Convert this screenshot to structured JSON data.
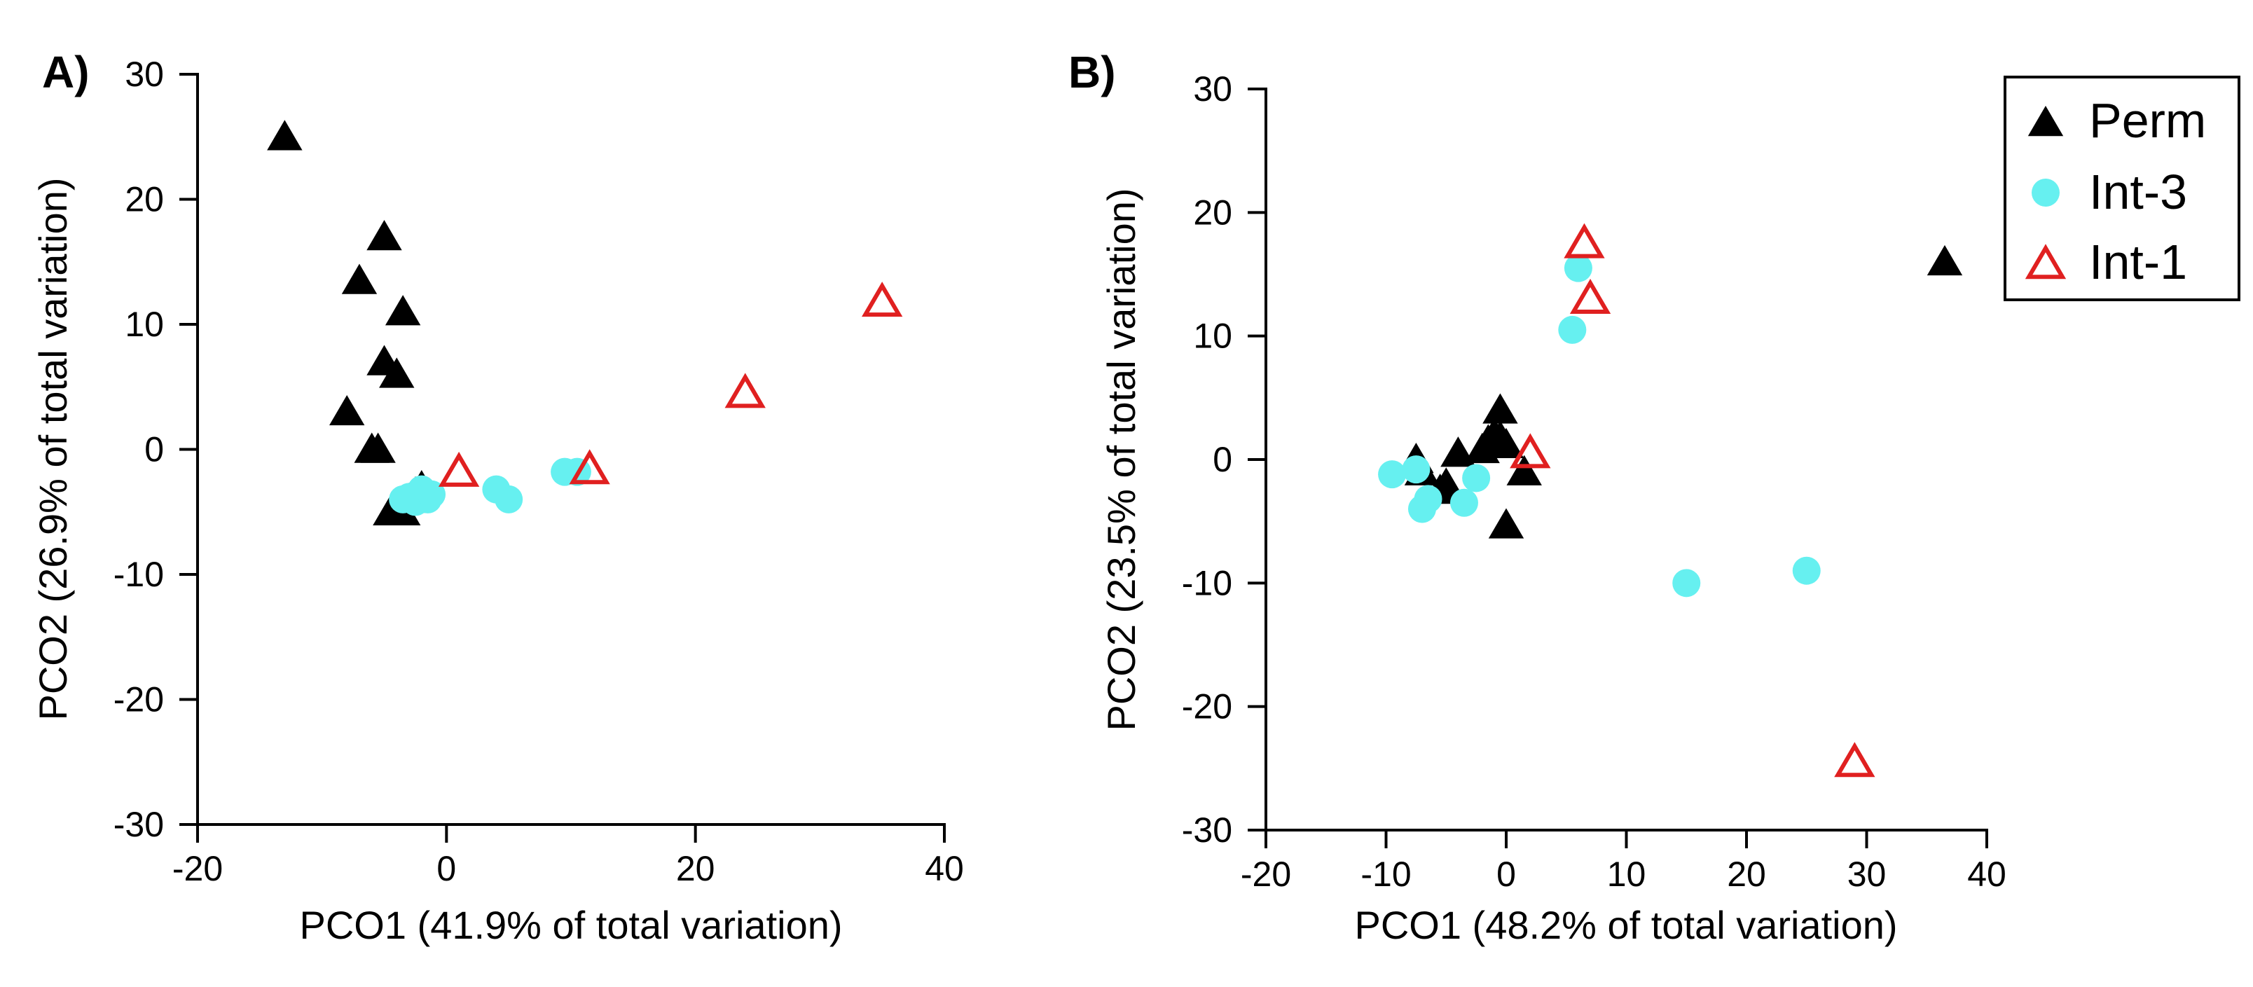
{
  "chart_data": [
    {
      "panel_label": "A)",
      "type": "scatter",
      "title": "",
      "xlabel": "PCO1 (41.9% of total variation)",
      "ylabel": "PCO2 (26.9% of total variation)",
      "xlim": [
        -20,
        40
      ],
      "ylim": [
        -30,
        30
      ],
      "xticks": [
        -20,
        0,
        20,
        40
      ],
      "yticks": [
        -30,
        -20,
        -10,
        0,
        10,
        20,
        30
      ],
      "grid": false,
      "series": [
        {
          "name": "Perm",
          "marker": "filled-triangle",
          "color": "#000000",
          "points": [
            [
              -13,
              25
            ],
            [
              -5,
              17
            ],
            [
              -7,
              13.5
            ],
            [
              -3.5,
              11
            ],
            [
              -5,
              7
            ],
            [
              -4,
              6
            ],
            [
              -8,
              3
            ],
            [
              -6,
              0
            ],
            [
              -5.5,
              0
            ],
            [
              -2,
              -3
            ],
            [
              -3,
              -4
            ],
            [
              -4.5,
              -5
            ],
            [
              -3.5,
              -5
            ],
            [
              -2.5,
              -3.5
            ]
          ]
        },
        {
          "name": "Int-3",
          "marker": "filled-circle",
          "color": "#66f0f0",
          "points": [
            [
              -3,
              -3.8
            ],
            [
              -2,
              -3.2
            ],
            [
              -1.5,
              -4
            ],
            [
              -2.5,
              -4.2
            ],
            [
              -3.5,
              -4
            ],
            [
              -1.2,
              -3.6
            ],
            [
              4,
              -3.2
            ],
            [
              5,
              -4
            ],
            [
              9.5,
              -1.8
            ],
            [
              10.5,
              -1.8
            ]
          ]
        },
        {
          "name": "Int-1",
          "marker": "open-triangle",
          "color": "#e02020",
          "points": [
            [
              1,
              -1.8
            ],
            [
              11.5,
              -1.6
            ],
            [
              24,
              4.5
            ],
            [
              35,
              11.8
            ]
          ]
        }
      ]
    },
    {
      "panel_label": "B)",
      "type": "scatter",
      "title": "",
      "xlabel": "PCO1 (48.2% of total variation)",
      "ylabel": "PCO2 (23.5% of total variation)",
      "xlim": [
        -20,
        40
      ],
      "ylim": [
        -30,
        30
      ],
      "xticks": [
        -20,
        -10,
        0,
        10,
        20,
        30,
        40
      ],
      "yticks": [
        -30,
        -20,
        -10,
        0,
        10,
        20,
        30
      ],
      "grid": false,
      "series": [
        {
          "name": "Perm",
          "marker": "filled-triangle",
          "color": "#000000",
          "points": [
            [
              36.5,
              16
            ],
            [
              -0.5,
              4
            ],
            [
              -4,
              0.5
            ],
            [
              -1.5,
              1.5
            ],
            [
              -0.5,
              1.8
            ],
            [
              0,
              1.2
            ],
            [
              -1,
              2
            ],
            [
              -7.5,
              0
            ],
            [
              -7,
              -1
            ],
            [
              -5,
              -2
            ],
            [
              -5.5,
              -2.5
            ],
            [
              -2,
              0.8
            ],
            [
              1.5,
              -1
            ],
            [
              0,
              -5.3
            ]
          ]
        },
        {
          "name": "Int-3",
          "marker": "filled-circle",
          "color": "#66f0f0",
          "points": [
            [
              6,
              15.5
            ],
            [
              5.5,
              10.5
            ],
            [
              -9.5,
              -1.2
            ],
            [
              -7.5,
              -0.8
            ],
            [
              -6.5,
              -3.2
            ],
            [
              -7,
              -4
            ],
            [
              -3.5,
              -3.5
            ],
            [
              -2.5,
              -1.5
            ],
            [
              15,
              -10
            ],
            [
              25,
              -9
            ]
          ]
        },
        {
          "name": "Int-1",
          "marker": "open-triangle",
          "color": "#e02020",
          "points": [
            [
              6.5,
              17.5
            ],
            [
              7,
              13
            ],
            [
              2,
              0.5
            ],
            [
              29,
              -24.5
            ]
          ]
        }
      ]
    }
  ],
  "legend": {
    "placement": "top-right",
    "entries": [
      {
        "label": "Perm",
        "marker": "filled-triangle",
        "color": "#000000"
      },
      {
        "label": "Int-3",
        "marker": "filled-circle",
        "color": "#66f0f0"
      },
      {
        "label": "Int-1",
        "marker": "open-triangle",
        "color": "#e02020"
      }
    ]
  }
}
